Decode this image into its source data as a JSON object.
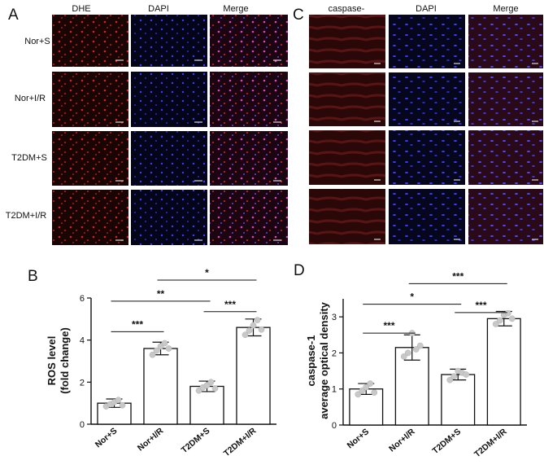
{
  "panel_letters": {
    "a": "A",
    "b": "B",
    "c": "C",
    "d": "D"
  },
  "panel_a": {
    "columns": [
      "DHE",
      "DAPI",
      "Merge"
    ],
    "rows": [
      "Nor+S",
      "Nor+I/R",
      "T2DM+S",
      "T2DM+I/R"
    ]
  },
  "panel_c": {
    "columns": [
      "caspase-",
      "DAPI",
      "Merge"
    ]
  },
  "colors": {
    "dhe_red": "#d42020",
    "dapi_blue": "#3a3cff",
    "merge_magenta": "#e040c0",
    "tissue_dark": "#1a0606",
    "point_gray": "#c8c8c8"
  },
  "chart_data": [
    {
      "type": "bar",
      "panel": "B",
      "ylabel_line1": "ROS level",
      "ylabel_line2": "(fold change)",
      "categories": [
        "Nor+S",
        "Nor+I/R",
        "T2DM+S",
        "T2DM+I/R"
      ],
      "values": [
        1.0,
        3.6,
        1.8,
        4.6
      ],
      "errors": [
        0.2,
        0.3,
        0.25,
        0.4
      ],
      "points": [
        [
          0.85,
          0.95,
          1.05,
          1.15,
          0.9
        ],
        [
          3.3,
          3.5,
          3.7,
          3.85,
          3.6
        ],
        [
          1.6,
          1.75,
          1.85,
          2.0,
          1.7
        ],
        [
          4.25,
          4.45,
          4.7,
          4.95,
          4.5
        ]
      ],
      "ylim": [
        0,
        6
      ],
      "yticks": [
        0,
        2,
        4,
        6
      ],
      "comparisons": [
        {
          "from": 0,
          "to": 1,
          "label": "***",
          "y": 4.4
        },
        {
          "from": 0,
          "to": 2,
          "label": "**",
          "y": 5.85
        },
        {
          "from": 2,
          "to": 3,
          "label": "***",
          "y": 5.35
        },
        {
          "from": 1,
          "to": 3,
          "label": "*",
          "y": 6.85
        }
      ]
    },
    {
      "type": "bar",
      "panel": "D",
      "ylabel_line1": "caspase-1",
      "ylabel_line2": "average optical density",
      "categories": [
        "Nor+S",
        "Nor+I/R",
        "T2DM+S",
        "T2DM+I/R"
      ],
      "values": [
        1.0,
        2.15,
        1.4,
        2.95
      ],
      "errors": [
        0.15,
        0.35,
        0.15,
        0.2
      ],
      "points": [
        [
          0.85,
          0.95,
          1.05,
          1.15,
          0.9
        ],
        [
          1.9,
          2.0,
          2.55,
          2.1,
          2.2
        ],
        [
          1.25,
          1.35,
          1.5,
          1.45,
          1.4
        ],
        [
          2.8,
          2.9,
          3.05,
          3.1,
          2.95
        ]
      ],
      "ylim": [
        0,
        3.5
      ],
      "yticks": [
        0,
        1,
        2,
        3
      ],
      "comparisons": [
        {
          "from": 0,
          "to": 1,
          "label": "***",
          "y": 2.55
        },
        {
          "from": 0,
          "to": 2,
          "label": "*",
          "y": 3.35
        },
        {
          "from": 2,
          "to": 3,
          "label": "***",
          "y": 3.12
        },
        {
          "from": 1,
          "to": 3,
          "label": "***",
          "y": 3.92
        }
      ]
    }
  ]
}
